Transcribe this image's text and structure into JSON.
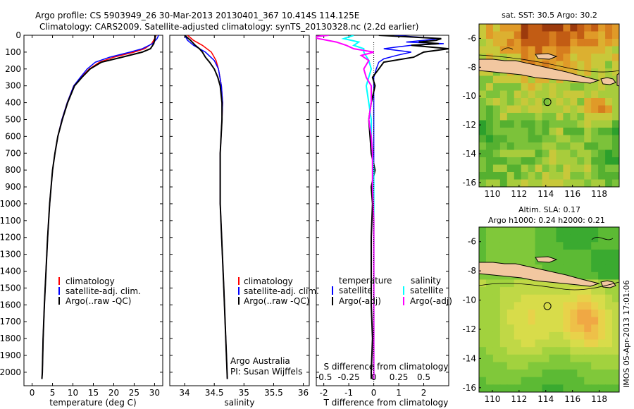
{
  "header": {
    "line1": "Argo profile: CS 5903949_26 30-Mar-2013 20130401_367 10.414S 114.125E",
    "line2": "Climatology: CARS2009. Satellite-adjusted climatology: synTS_20130328.nc (2.2d earlier)"
  },
  "map_top": {
    "title": "sat. SST: 30.5  Argo: 30.2"
  },
  "map_bottom": {
    "title1": "Altim. SLA: 0.17",
    "title2": "Argo h1000: 0.24  h2000: 0.21"
  },
  "stamp": "IMOS 05-Apr-2013 17:01:06",
  "credit": {
    "line1": "Argo Australia",
    "line2": "PI: Susan Wijffels"
  },
  "colors": {
    "climatology": "#ff0000",
    "satellite": "#0000ff",
    "argo": "#000000",
    "cyan": "#00ffff",
    "magenta": "#ff00ff",
    "land": "#f2c7a0"
  },
  "chart_data": [
    {
      "type": "line",
      "name": "temperature",
      "xlabel": "temperature (deg C)",
      "ylabel": "depth",
      "xlim": [
        -2,
        32
      ],
      "ylim": [
        2080,
        0
      ],
      "xticks": [
        0,
        5,
        10,
        15,
        20,
        25,
        30
      ],
      "yticks": [
        0,
        100,
        200,
        300,
        400,
        500,
        600,
        700,
        800,
        900,
        1000,
        1100,
        1200,
        1300,
        1400,
        1500,
        1600,
        1700,
        1800,
        1900,
        2000
      ],
      "legend": [
        "climatology",
        "satellite-adj. clim.",
        "Argo(..raw -QC)"
      ],
      "series": [
        {
          "name": "climatology",
          "depth": [
            0,
            20,
            50,
            80,
            100,
            130,
            160,
            200,
            250,
            300,
            400,
            500,
            600,
            700,
            800,
            1000,
            1200,
            1400,
            1600,
            1800,
            2000,
            2040
          ],
          "values": [
            30.4,
            30,
            29.3,
            27.6,
            25,
            20,
            16.5,
            14,
            12,
            10.2,
            8.6,
            7.3,
            6.3,
            5.6,
            5.0,
            4.3,
            3.8,
            3.4,
            3.0,
            2.7,
            2.5,
            2.4
          ]
        },
        {
          "name": "satellite",
          "depth": [
            0,
            20,
            50,
            80,
            100,
            130,
            160,
            200,
            250,
            300,
            400,
            500,
            600,
            700,
            800,
            1000,
            1200,
            1400,
            1600,
            1800,
            2000,
            2040
          ],
          "values": [
            31,
            30.6,
            29.5,
            27,
            24,
            19,
            15.5,
            13.5,
            11.8,
            10.2,
            8.6,
            7.3,
            6.3,
            5.6,
            5.0,
            4.3,
            3.8,
            3.4,
            3.0,
            2.7,
            2.5,
            2.4
          ]
        },
        {
          "name": "argo",
          "depth": [
            0,
            20,
            50,
            80,
            100,
            130,
            160,
            200,
            250,
            300,
            400,
            500,
            600,
            700,
            800,
            1000,
            1200,
            1400,
            1600,
            1800,
            2000,
            2040
          ],
          "values": [
            30.2,
            30.1,
            29.8,
            29,
            27,
            22,
            17,
            14.2,
            12.2,
            10.4,
            8.7,
            7.4,
            6.3,
            5.6,
            5.0,
            4.3,
            3.8,
            3.4,
            3.0,
            2.7,
            2.5,
            2.4
          ]
        }
      ]
    },
    {
      "type": "line",
      "name": "salinity",
      "xlabel": "salinity",
      "xlim": [
        33.75,
        36.1
      ],
      "ylim": [
        2080,
        0
      ],
      "xticks": [
        34,
        34.5,
        35,
        35.5,
        36
      ],
      "legend": [
        "climatology",
        "satellite-adj. clim.",
        "Argo(..raw -QC)"
      ],
      "series": [
        {
          "name": "climatology",
          "depth": [
            0,
            30,
            60,
            100,
            150,
            200,
            300,
            400,
            500,
            700,
            1000,
            1500,
            2040
          ],
          "values": [
            34.05,
            34.15,
            34.3,
            34.45,
            34.53,
            34.57,
            34.62,
            34.64,
            34.63,
            34.6,
            34.6,
            34.66,
            34.72
          ]
        },
        {
          "name": "satellite",
          "depth": [
            0,
            30,
            60,
            100,
            150,
            200,
            300,
            400,
            500,
            700,
            1000,
            1500,
            2040
          ],
          "values": [
            34.0,
            34.05,
            34.15,
            34.35,
            34.5,
            34.57,
            34.62,
            34.64,
            34.63,
            34.6,
            34.6,
            34.66,
            34.72
          ]
        },
        {
          "name": "argo",
          "depth": [
            0,
            30,
            60,
            80,
            100,
            130,
            160,
            200,
            250,
            300,
            400,
            500,
            700,
            1000,
            1500,
            2040
          ],
          "values": [
            34.0,
            34.1,
            34.18,
            34.25,
            34.3,
            34.35,
            34.42,
            34.5,
            34.56,
            34.6,
            34.63,
            34.63,
            34.6,
            34.6,
            34.66,
            34.72
          ]
        }
      ]
    },
    {
      "type": "line",
      "name": "difference",
      "xlabel": "T difference from climatology",
      "xlabel2": "S difference from climatology",
      "xlim": [
        -2.3,
        3
      ],
      "ylim": [
        2080,
        0
      ],
      "xticks_T": [
        -2,
        -1,
        0,
        1,
        2
      ],
      "xticks_S": [
        "-0.5",
        "-0.25",
        "0",
        "0.25",
        "0.5"
      ],
      "xticks_S_pos": [
        -2,
        -1,
        0,
        1,
        2
      ],
      "legend": [
        "temperature",
        "satellite",
        "Argo(-adj)",
        "salinity",
        "satellite",
        "Argo(-adj)"
      ],
      "series": [
        {
          "name": "T satellite",
          "depth": [
            0,
            20,
            30,
            40,
            50,
            60,
            70,
            80,
            100,
            120,
            140,
            160,
            200,
            250,
            300,
            400,
            600,
            800,
            1000,
            1200,
            1400,
            2040
          ],
          "values": [
            0.8,
            2.6,
            2.0,
            1.3,
            2.8,
            1.5,
            0.9,
            0.4,
            1.5,
            0.9,
            0.4,
            0.2,
            0.1,
            0.0,
            0.0,
            0.0,
            0.0,
            0.0,
            0.0,
            0.0,
            0.0,
            0.0
          ]
        },
        {
          "name": "T argo",
          "depth": [
            0,
            20,
            30,
            40,
            50,
            60,
            80,
            100,
            130,
            160,
            200,
            250,
            300,
            400,
            500,
            600,
            700,
            800,
            900,
            1000,
            1200,
            1400,
            1600,
            1800,
            2000,
            2040
          ],
          "values": [
            0.2,
            2.7,
            2.5,
            1.8,
            2.6,
            1.5,
            3.0,
            2.0,
            1.6,
            0.4,
            0.2,
            -0.05,
            0.05,
            -0.1,
            -0.2,
            -0.15,
            -0.1,
            0.05,
            -0.1,
            -0.05,
            -0.1,
            -0.1,
            -0.1,
            -0.05,
            -0.1,
            -0.1
          ]
        },
        {
          "name": "S satellite",
          "depth": [
            0,
            20,
            40,
            60,
            80,
            100,
            150,
            200,
            300,
            400,
            500,
            600,
            800,
            1000,
            2040
          ],
          "values": [
            -0.8,
            -1.2,
            -0.6,
            -0.8,
            -0.4,
            -0.4,
            -0.2,
            -0.1,
            -0.3,
            -0.2,
            -0.1,
            -0.1,
            0.0,
            0.0,
            0.0
          ]
        },
        {
          "name": "S argo",
          "depth": [
            0,
            10,
            20,
            40,
            60,
            80,
            100,
            120,
            150,
            200,
            250,
            300,
            400,
            500,
            600,
            700,
            900,
            1100,
            2040
          ],
          "values": [
            -1.8,
            -2.5,
            -2.2,
            -1.5,
            -1.1,
            -0.8,
            0.0,
            -0.5,
            -0.2,
            -0.4,
            -0.3,
            -0.1,
            -0.1,
            -0.2,
            -0.1,
            -0.05,
            -0.05,
            0.0,
            0.0
          ]
        }
      ]
    },
    {
      "type": "heatmap",
      "name": "sst_map",
      "title": "sat. SST: 30.5  Argo: 30.2",
      "xlim": [
        109,
        119.5
      ],
      "ylim": [
        -16.3,
        -5
      ],
      "xticks": [
        110,
        112,
        114,
        116,
        118
      ],
      "yticks": [
        -6,
        -8,
        -10,
        -12,
        -14,
        -16
      ],
      "argo_point": [
        114.125,
        -10.414
      ]
    },
    {
      "type": "heatmap",
      "name": "sla_map",
      "title": "Altim. SLA: 0.17",
      "xlim": [
        109,
        119.5
      ],
      "ylim": [
        -16.3,
        -5
      ],
      "xticks": [
        110,
        112,
        114,
        116,
        118
      ],
      "yticks": [
        -6,
        -8,
        -10,
        -12,
        -14,
        -16
      ],
      "argo_point": [
        114.125,
        -10.414
      ]
    }
  ]
}
